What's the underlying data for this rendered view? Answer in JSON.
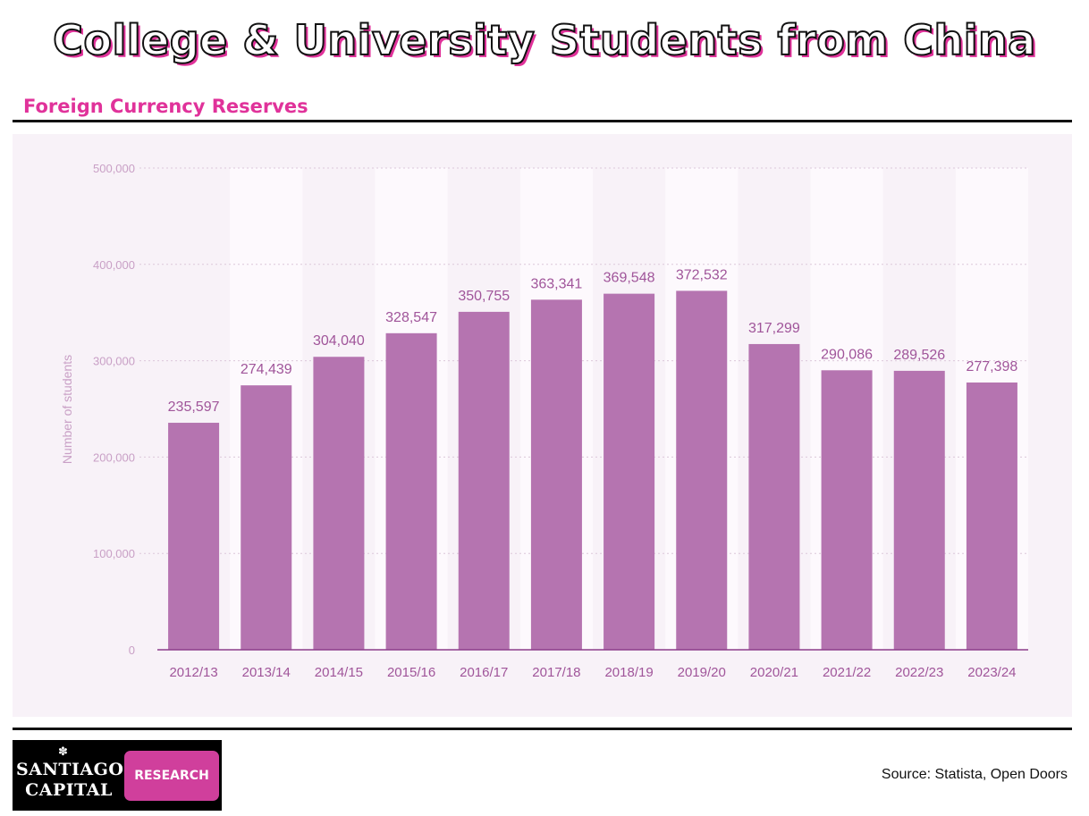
{
  "header": {
    "title": "College & University Students from China",
    "subtitle": "Foreign Currency Reserves"
  },
  "chart_data": {
    "type": "bar",
    "title": "",
    "xlabel": "",
    "ylabel": "Number of students",
    "categories": [
      "2012/13",
      "2013/14",
      "2014/15",
      "2015/16",
      "2016/17",
      "2017/18",
      "2018/19",
      "2019/20",
      "2020/21",
      "2021/22",
      "2022/23",
      "2023/24"
    ],
    "values": [
      235597,
      274439,
      304040,
      328547,
      350755,
      363341,
      369548,
      372532,
      317299,
      290086,
      289526,
      277398
    ],
    "value_labels": [
      "235,597",
      "274,439",
      "304,040",
      "328,547",
      "350,755",
      "363,341",
      "369,548",
      "372,532",
      "317,299",
      "290,086",
      "289,526",
      "277,398"
    ],
    "ylim": [
      0,
      500000
    ],
    "yticks": [
      0,
      100000,
      200000,
      300000,
      400000,
      500000
    ],
    "ytick_labels": [
      "0",
      "100,000",
      "200,000",
      "300,000",
      "400,000",
      "500,000"
    ],
    "grid": true,
    "bar_color": "#b574b0",
    "label_color": "#a0559a",
    "axis_text_color": "#c9a0c6"
  },
  "logo": {
    "line1": "Santiago",
    "line2": "Capital",
    "badge": "RESEARCH"
  },
  "footer": {
    "source": "Source: Statista, Open Doors"
  }
}
